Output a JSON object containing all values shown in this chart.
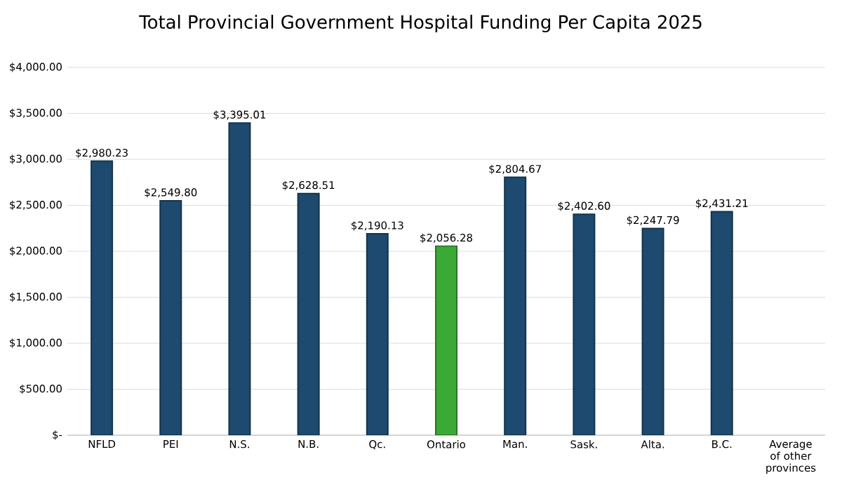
{
  "chart_data": {
    "type": "bar",
    "title": "Total Provincial Government Hospital Funding Per Capita 2025",
    "categories": [
      "NFLD",
      "PEI",
      "N.S.",
      "N.B.",
      "Qc.",
      "Ontario",
      "Man.",
      "Sask.",
      "Alta.",
      "B.C.",
      "Average of other provinces"
    ],
    "values": [
      2980.23,
      2549.8,
      3395.01,
      2628.51,
      2190.13,
      2056.28,
      2804.67,
      2402.6,
      2247.79,
      2431.21,
      null
    ],
    "value_labels": [
      "$2,980.23",
      "$2,549.80",
      "$3,395.01",
      "$2,628.51",
      "$2,190.13",
      "$2,056.28",
      "$2,804.67",
      "$2,402.60",
      "$2,247.79",
      "$2,431.21",
      null
    ],
    "colors": [
      "#1d4a6e",
      "#1d4a6e",
      "#1d4a6e",
      "#1d4a6e",
      "#1d4a6e",
      "#3aa935",
      "#1d4a6e",
      "#1d4a6e",
      "#1d4a6e",
      "#1d4a6e",
      "#1d4a6e"
    ],
    "ylim": [
      0,
      4000
    ],
    "yticks": [
      {
        "value": 0,
        "label": "$-"
      },
      {
        "value": 500,
        "label": "$500.00"
      },
      {
        "value": 1000,
        "label": "$1,000.00"
      },
      {
        "value": 1500,
        "label": "$1,500.00"
      },
      {
        "value": 2000,
        "label": "$2,000.00"
      },
      {
        "value": 2500,
        "label": "$2,500.00"
      },
      {
        "value": 3000,
        "label": "$3,000.00"
      },
      {
        "value": 3500,
        "label": "$3,500.00"
      },
      {
        "value": 4000,
        "label": "$4,000.00"
      }
    ],
    "grid": "y"
  }
}
